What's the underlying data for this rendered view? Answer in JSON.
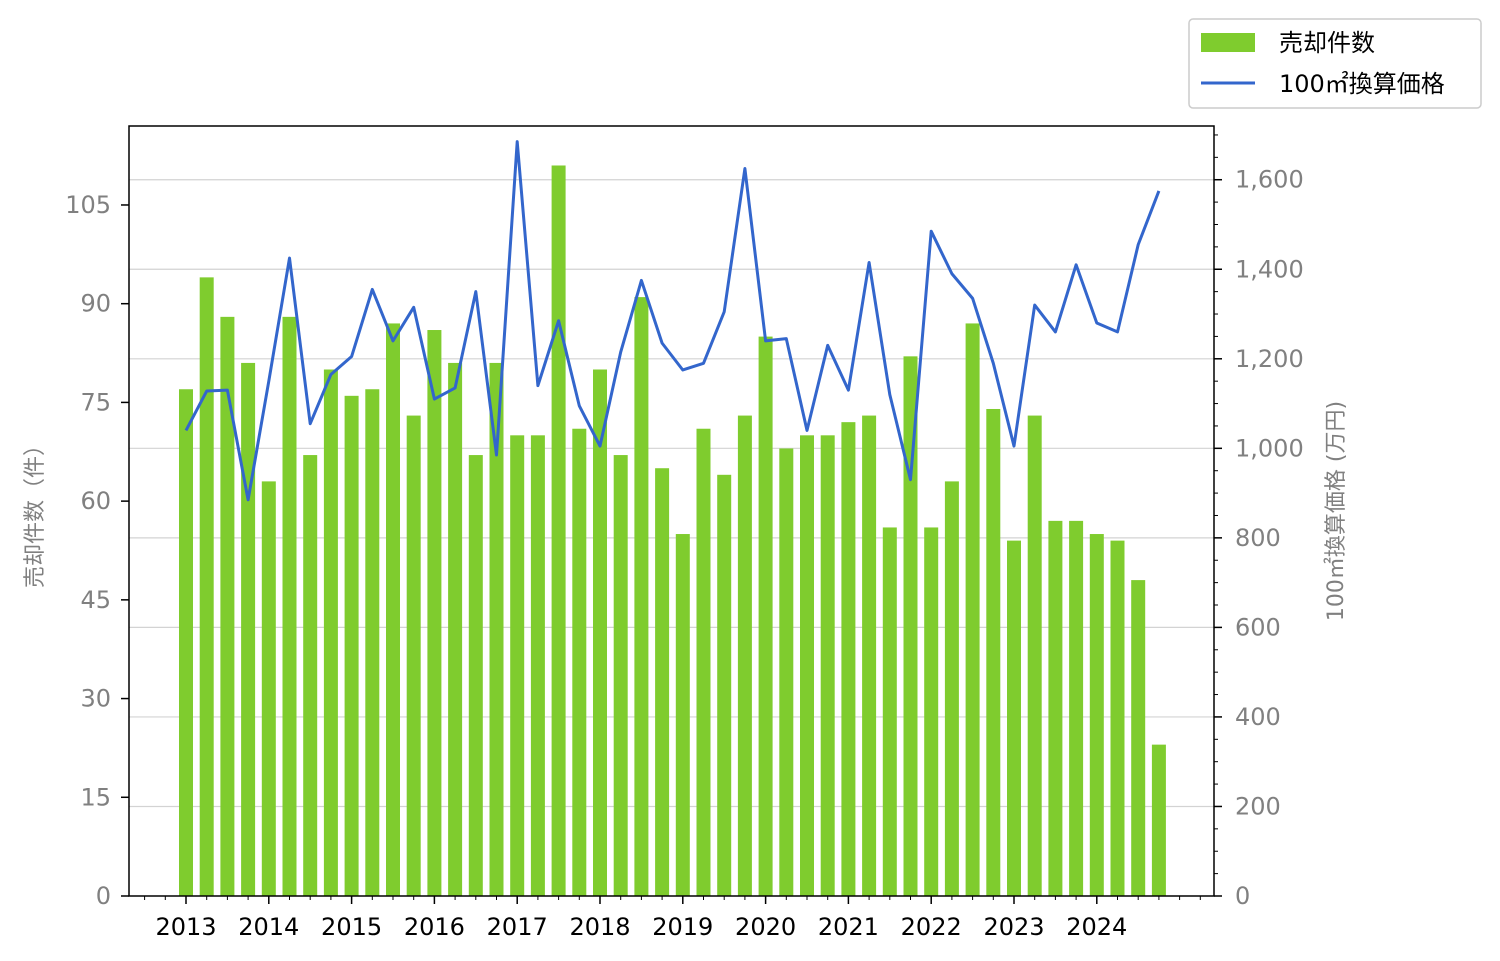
{
  "colors": {
    "bar": "#7fcc2e",
    "line": "#3366cc",
    "grid": "#d3d3d3",
    "tick_text": "#808080"
  },
  "legend": {
    "bar_label": "売却件数",
    "line_label": "100㎡換算価格",
    "placement": "top-right (outside plot)"
  },
  "chart_data": {
    "type": "bar+line",
    "xlabel": "",
    "ylabel_left": "売却件数（件）",
    "ylabel_right": "100㎡換算価格 (万円)",
    "ylim_left": [
      0,
      117
    ],
    "ylim_right": [
      0,
      1720
    ],
    "yticks_left": [
      "0",
      "15",
      "30",
      "45",
      "60",
      "75",
      "90",
      "105"
    ],
    "yticks_right": [
      "0",
      "200",
      "400",
      "600",
      "800",
      "1,000",
      "1,200",
      "1,400",
      "1,600"
    ],
    "grid": "horizontal, right axis",
    "x_tick_labels": [
      "2013",
      "2014",
      "2015",
      "2016",
      "2017",
      "2018",
      "2019",
      "2020",
      "2021",
      "2022",
      "2023",
      "2024"
    ],
    "periods": [
      "2013Q1",
      "2013Q2",
      "2013Q3",
      "2013Q4",
      "2014Q1",
      "2014Q2",
      "2014Q3",
      "2014Q4",
      "2015Q1",
      "2015Q2",
      "2015Q3",
      "2015Q4",
      "2016Q1",
      "2016Q2",
      "2016Q3",
      "2016Q4",
      "2017Q1",
      "2017Q2",
      "2017Q3",
      "2017Q4",
      "2018Q1",
      "2018Q2",
      "2018Q3",
      "2018Q4",
      "2019Q1",
      "2019Q2",
      "2019Q3",
      "2019Q4",
      "2020Q1",
      "2020Q2",
      "2020Q3",
      "2020Q4",
      "2021Q1",
      "2021Q2",
      "2021Q3",
      "2021Q4",
      "2022Q1",
      "2022Q2",
      "2022Q3",
      "2022Q4",
      "2023Q1",
      "2023Q2",
      "2023Q3",
      "2023Q4",
      "2024Q1",
      "2024Q2",
      "2024Q3",
      "2024Q4"
    ],
    "series": [
      {
        "name": "売却件数",
        "type": "bar",
        "axis": "left",
        "values": [
          77,
          94,
          88,
          81,
          63,
          88,
          67,
          80,
          76,
          77,
          87,
          73,
          86,
          81,
          67,
          81,
          70,
          70,
          111,
          71,
          80,
          67,
          91,
          65,
          55,
          71,
          64,
          73,
          85,
          68,
          70,
          70,
          72,
          73,
          56,
          82,
          56,
          63,
          87,
          74,
          54,
          73,
          57,
          57,
          55,
          54,
          48,
          23
        ]
      },
      {
        "name": "100㎡換算価格",
        "type": "line",
        "axis": "right",
        "values": [
          1040,
          1128,
          1130,
          885,
          1150,
          1425,
          1055,
          1165,
          1205,
          1355,
          1240,
          1315,
          1110,
          1135,
          1350,
          985,
          1685,
          1140,
          1285,
          1095,
          1005,
          1215,
          1375,
          1235,
          1175,
          1190,
          1305,
          1625,
          1240,
          1245,
          1040,
          1230,
          1130,
          1415,
          1120,
          930,
          1485,
          1390,
          1335,
          1190,
          1005,
          1320,
          1260,
          1410,
          1280,
          1260,
          1455,
          1575
        ]
      }
    ]
  }
}
